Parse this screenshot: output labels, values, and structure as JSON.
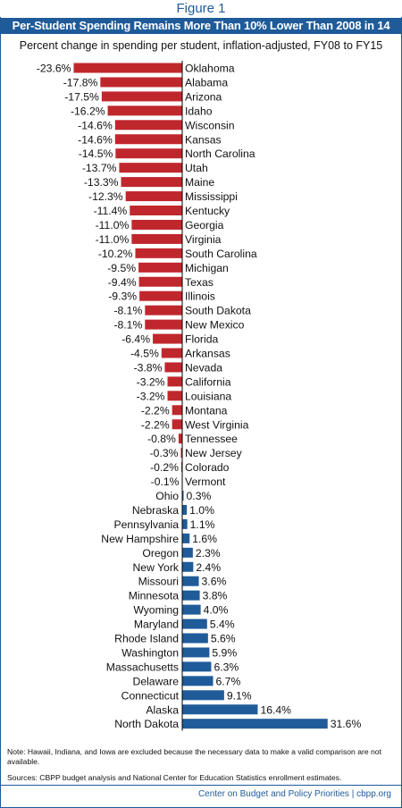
{
  "figure_label": "Figure 1",
  "title": "Per-Student Spending Remains More Than 10% Lower Than 2008 in 14 States",
  "subtitle": "Percent change in spending per student, inflation-adjusted, FY08 to FY15",
  "note": "Note: Hawaii, Indiana, and Iowa are excluded because the necessary data to make a valid comparison are not available.",
  "sources": "Sources: CBPP budget analysis and National Center for Education Statistics enrollment estimates.",
  "footer": "Center on Budget and Policy Priorities | cbpp.org",
  "colors": {
    "negative": "#c0272d",
    "positive": "#1f5b99",
    "accent": "#1f5b99"
  },
  "chart_data": {
    "type": "bar",
    "orientation": "horizontal",
    "value_suffix": "%",
    "categories": [
      "Oklahoma",
      "Alabama",
      "Arizona",
      "Idaho",
      "Wisconsin",
      "Kansas",
      "North Carolina",
      "Utah",
      "Maine",
      "Mississippi",
      "Kentucky",
      "Georgia",
      "Virginia",
      "South Carolina",
      "Michigan",
      "Texas",
      "Illinois",
      "South Dakota",
      "New Mexico",
      "Florida",
      "Arkansas",
      "Nevada",
      "California",
      "Louisiana",
      "Montana",
      "West Virginia",
      "Tennessee",
      "New Jersey",
      "Colorado",
      "Vermont",
      "Ohio",
      "Nebraska",
      "Pennsylvania",
      "New Hampshire",
      "Oregon",
      "New York",
      "Missouri",
      "Minnesota",
      "Wyoming",
      "Maryland",
      "Rhode Island",
      "Washington",
      "Massachusetts",
      "Delaware",
      "Connecticut",
      "Alaska",
      "North Dakota"
    ],
    "values": [
      -23.6,
      -17.8,
      -17.5,
      -16.2,
      -14.6,
      -14.6,
      -14.5,
      -13.7,
      -13.3,
      -12.3,
      -11.4,
      -11.0,
      -11.0,
      -10.2,
      -9.5,
      -9.4,
      -9.3,
      -8.1,
      -8.1,
      -6.4,
      -4.5,
      -3.8,
      -3.2,
      -3.2,
      -2.2,
      -2.2,
      -0.8,
      -0.3,
      -0.2,
      -0.1,
      0.3,
      1.0,
      1.1,
      1.6,
      2.3,
      2.4,
      3.6,
      3.8,
      4.0,
      5.4,
      5.6,
      5.9,
      6.3,
      6.7,
      9.1,
      16.4,
      31.6
    ],
    "data_labels": [
      "-23.6%",
      "-17.8%",
      "-17.5%",
      "-16.2%",
      "-14.6%",
      "-14.6%",
      "-14.5%",
      "-13.7%",
      "-13.3%",
      "-12.3%",
      "-11.4%",
      "-11.0%",
      "-11.0%",
      "-10.2%",
      "-9.5%",
      "-9.4%",
      "-9.3%",
      "-8.1%",
      "-8.1%",
      "-6.4%",
      "-4.5%",
      "-3.8%",
      "-3.2%",
      "-3.2%",
      "-2.2%",
      "-2.2%",
      "-0.8%",
      "-0.3%",
      "-0.2%",
      "-0.1%",
      "0.3%",
      "1.0%",
      "1.1%",
      "1.6%",
      "2.3%",
      "2.4%",
      "3.6%",
      "3.8%",
      "4.0%",
      "5.4%",
      "5.6%",
      "5.9%",
      "6.3%",
      "6.7%",
      "9.1%",
      "16.4%",
      "31.6%"
    ],
    "title": "Per-Student Spending Remains More Than 10% Lower Than 2008 in 14 States",
    "subtitle": "Percent change in spending per student, inflation-adjusted, FY08 to FY15",
    "xlabel": "",
    "ylabel": "",
    "xlim": [
      -23.6,
      31.6
    ],
    "grid": false,
    "legend": "none"
  }
}
